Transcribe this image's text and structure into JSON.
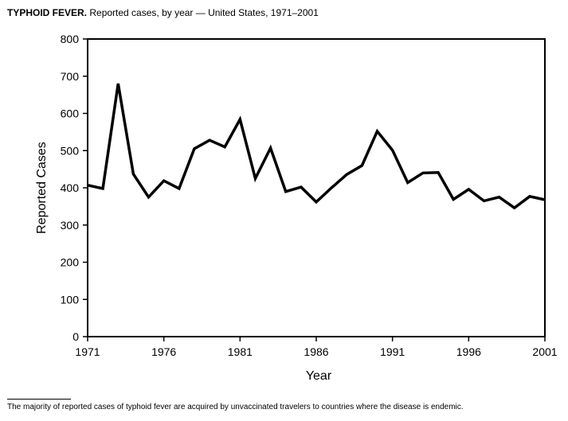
{
  "title": {
    "bold_part": "TYPHOID FEVER.",
    "rest": " Reported cases, by year — United States, 1971–2001"
  },
  "footnote": "The majority of reported cases of typhoid fever are acquired by unvaccinated travelers to countries where the disease is endemic.",
  "chart_data": {
    "type": "line",
    "xlabel": "Year",
    "ylabel": "Reported Cases",
    "xlim": [
      1971,
      2001
    ],
    "ylim": [
      0,
      800
    ],
    "x_ticks": [
      1971,
      1976,
      1981,
      1986,
      1991,
      1996,
      2001
    ],
    "y_ticks": [
      0,
      100,
      200,
      300,
      400,
      500,
      600,
      700,
      800
    ],
    "grid": false,
    "legend": "none",
    "line_color": "#000000",
    "series": [
      {
        "x": [
          1971,
          1972,
          1973,
          1974,
          1975,
          1976,
          1977,
          1978,
          1979,
          1980,
          1981,
          1982,
          1983,
          1984,
          1985,
          1986,
          1987,
          1988,
          1989,
          1990,
          1991,
          1992,
          1993,
          1994,
          1995,
          1996,
          1997,
          1998,
          1999,
          2000,
          2001
        ],
        "values": [
          407,
          398,
          680,
          437,
          375,
          419,
          398,
          505,
          528,
          510,
          584,
          425,
          507,
          390,
          402,
          362,
          400,
          436,
          460,
          552,
          501,
          414,
          440,
          441,
          369,
          396,
          365,
          375,
          346,
          377,
          368
        ]
      }
    ]
  }
}
